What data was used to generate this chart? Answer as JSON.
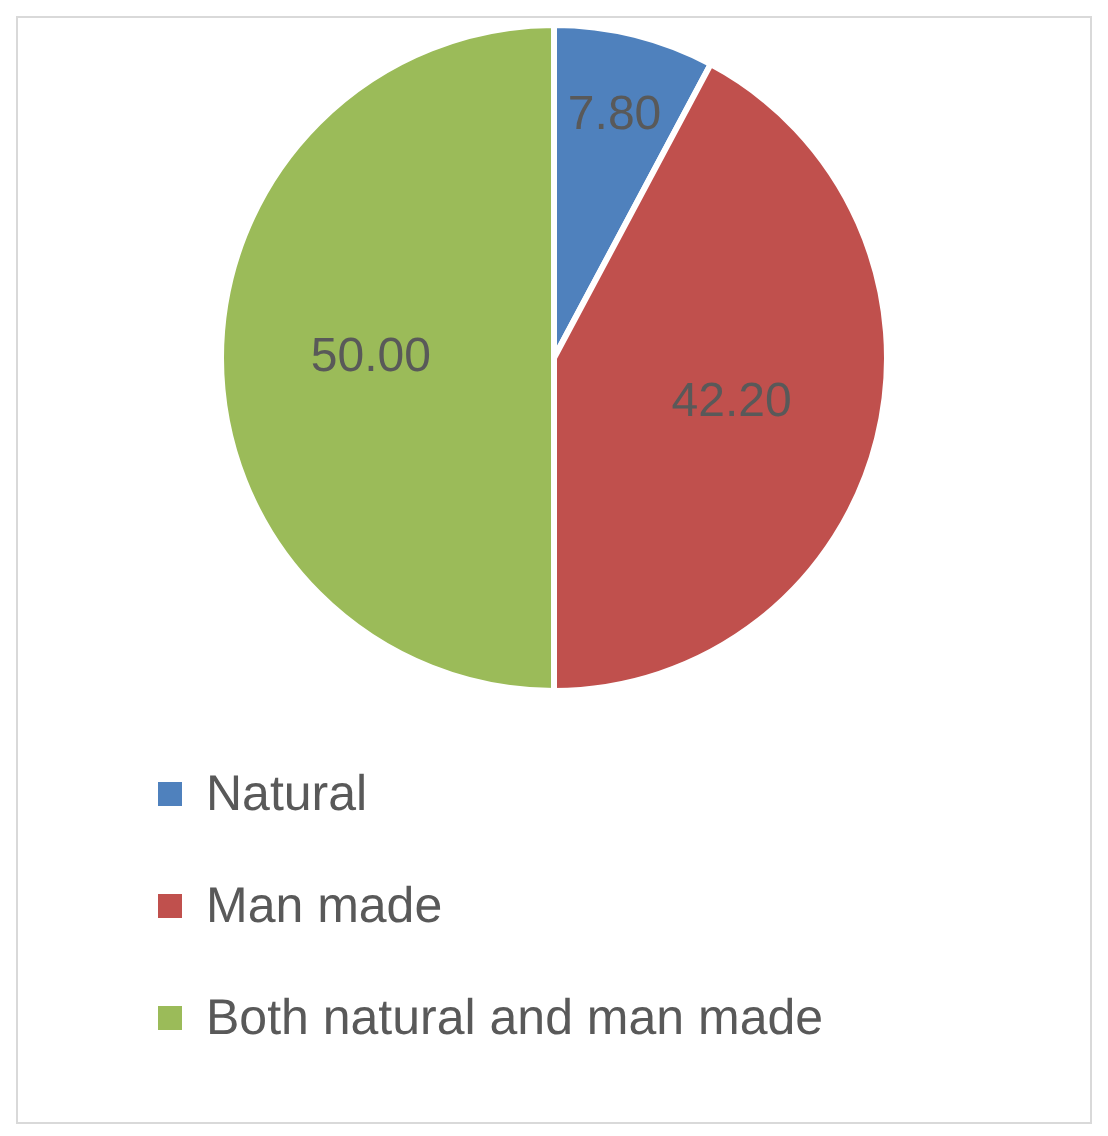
{
  "chart_data": {
    "type": "pie",
    "categories": [
      "Natural",
      "Man made",
      "Both natural and man made"
    ],
    "values": [
      7.8,
      42.2,
      50.0
    ],
    "value_labels": [
      "7.80",
      "42.20",
      "50.00"
    ],
    "colors": [
      "#4f81bd",
      "#c0504d",
      "#9bbb59"
    ],
    "legend": "bottom"
  }
}
